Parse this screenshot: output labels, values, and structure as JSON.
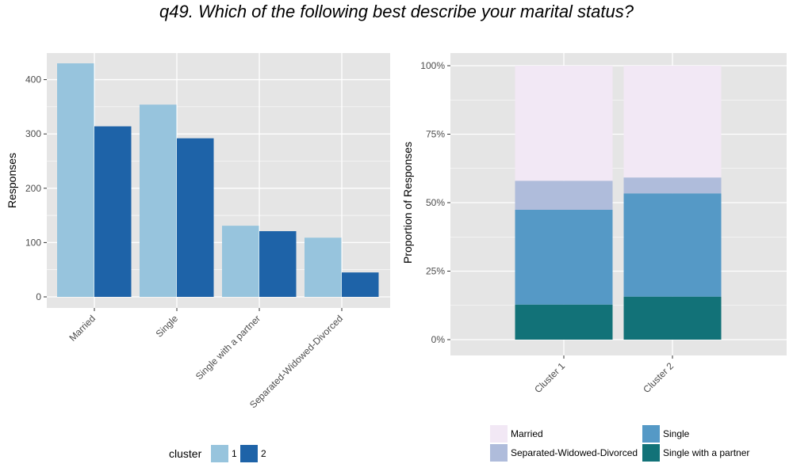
{
  "title": "q49. Which of the following best describe your marital status?",
  "colors": {
    "panel_bg": "#e5e5e5",
    "grid": "#ffffff",
    "axis_text": "#4d4d4d",
    "cluster_1": "#97c4dd",
    "cluster_2": "#1e63a8",
    "Married": "#f2e8f5",
    "Separated-Widowed-Divorced": "#afbcdb",
    "Single": "#5599c6",
    "Single with a partner": "#127278"
  },
  "chart_data": [
    {
      "type": "bar",
      "xlabel": "",
      "ylabel": "Responses",
      "ylim": [
        0,
        432
      ],
      "yticks": [
        0,
        100,
        200,
        300,
        400
      ],
      "categories": [
        "Married",
        "Single",
        "Single with a partner",
        "Separated-Widowed-Divorced"
      ],
      "series": [
        {
          "name": "1",
          "values": [
            430,
            354,
            131,
            109
          ]
        },
        {
          "name": "2",
          "values": [
            314,
            292,
            121,
            45
          ]
        }
      ],
      "legend": {
        "title": "cluster",
        "position": "bottom"
      },
      "grid": true
    },
    {
      "type": "bar",
      "stacked": true,
      "xlabel": "",
      "ylabel": "Proportion of Responses",
      "ylim": [
        0,
        1
      ],
      "yticks": [
        0,
        0.25,
        0.5,
        0.75,
        1
      ],
      "ytick_labels": [
        "0%",
        "25%",
        "50%",
        "75%",
        "100%"
      ],
      "categories": [
        "Cluster 1",
        "Cluster 2"
      ],
      "series": [
        {
          "name": "Single with a partner",
          "values": [
            0.128,
            0.157
          ]
        },
        {
          "name": "Single",
          "values": [
            0.346,
            0.377
          ]
        },
        {
          "name": "Separated-Widowed-Divorced",
          "values": [
            0.106,
            0.058
          ]
        },
        {
          "name": "Married",
          "values": [
            0.42,
            0.408
          ]
        }
      ],
      "legend": {
        "position": "bottom",
        "items": [
          "Married",
          "Separated-Widowed-Divorced",
          "Single",
          "Single with a partner"
        ]
      },
      "grid": true
    }
  ]
}
